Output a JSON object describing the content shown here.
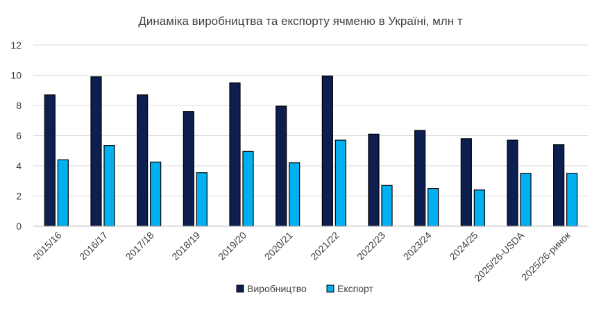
{
  "chart_data": {
    "type": "bar",
    "title": "Динаміка виробництва та експорту ячменю в Україні, млн т",
    "xlabel": "",
    "ylabel": "",
    "ylim": [
      0,
      12
    ],
    "yticks": [
      0,
      2,
      4,
      6,
      8,
      10,
      12
    ],
    "grid": true,
    "legend_position": "bottom",
    "categories": [
      "2015/16",
      "2016/17",
      "2017/18",
      "2018/19",
      "2019/20",
      "2020/21",
      "2021/22",
      "2022/23",
      "2023/24",
      "2024/25",
      "2025/26-USDA",
      "2025/26-ринок"
    ],
    "series": [
      {
        "name": "Виробництво",
        "color": "#0d1f4f",
        "values": [
          8.7,
          9.9,
          8.7,
          7.6,
          9.5,
          7.95,
          9.95,
          6.1,
          6.35,
          5.8,
          5.7,
          5.4
        ]
      },
      {
        "name": "Експорт",
        "color": "#00b0f0",
        "values": [
          4.4,
          5.35,
          4.25,
          3.55,
          4.95,
          4.2,
          5.7,
          2.7,
          2.5,
          2.4,
          3.5,
          3.5
        ]
      }
    ]
  }
}
